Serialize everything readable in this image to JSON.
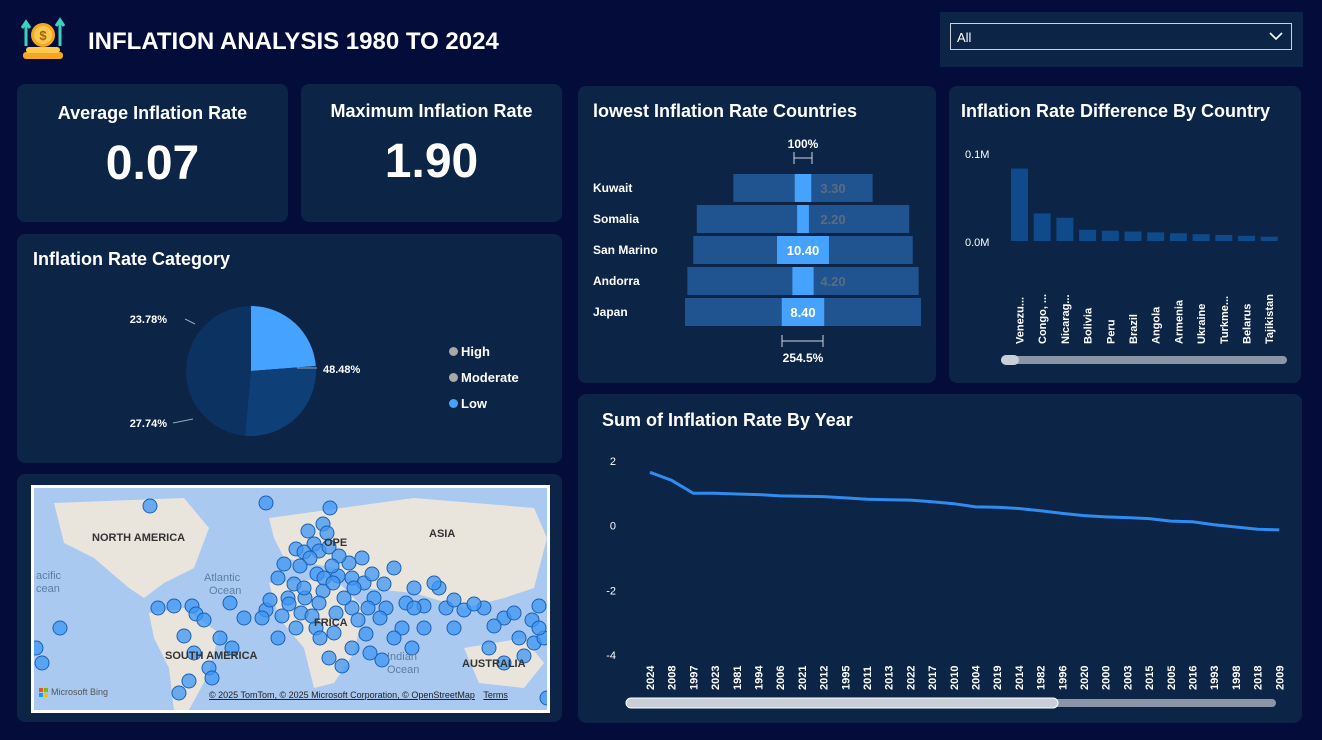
{
  "header": {
    "title": "INFLATION ANALYSIS 1980 TO 2024",
    "logo_icon": "money-growth-icon",
    "filter_value": "All"
  },
  "kpis": {
    "average": {
      "label": "Average Inflation Rate",
      "value": "0.07"
    },
    "maximum": {
      "label": "Maximum Inflation Rate",
      "value": "1.90"
    }
  },
  "category": {
    "title": "Inflation Rate Category",
    "legend": [
      {
        "label": "High",
        "color": "#a8a8a8"
      },
      {
        "label": "Moderate",
        "color": "#a8a8a8"
      },
      {
        "label": "Low",
        "color": "#45a3ff"
      }
    ]
  },
  "lowest": {
    "title": "lowest Inflation Rate Countries",
    "top_pct": "100%",
    "bottom_pct": "254.5%"
  },
  "difference": {
    "title": "Inflation Rate Difference By Country",
    "y_top": "0.1M",
    "y_zero": "0.0M"
  },
  "yearly": {
    "title": "Sum of Inflation Rate By Year"
  },
  "map": {
    "labels": {
      "north_america": "NORTH AMERICA",
      "asia": "ASIA",
      "europe": "OPE",
      "africa": "FRICA",
      "south_america": "SOUTH AMERICA",
      "australia": "AUSTRALIA",
      "pacific": "acific",
      "pacific2": "cean",
      "atlantic": "Atlantic",
      "atlantic2": "Ocean",
      "indian": "Indian",
      "indian2": "Ocean"
    },
    "attribution": "© 2025 TomTom, © 2025 Microsoft Corporation, © OpenStreetMap",
    "terms": "Terms",
    "bing": "Microsoft Bing"
  },
  "chart_data": [
    {
      "type": "pie",
      "title": "Inflation Rate Category",
      "categories": [
        "Low",
        "Moderate",
        "High"
      ],
      "values": [
        23.78,
        27.74,
        48.48
      ],
      "labels": [
        "23.78%",
        "27.74%",
        "48.48%"
      ],
      "colors": [
        "#45a3ff",
        "#0f3f77",
        "#0b3261"
      ]
    },
    {
      "type": "bar",
      "title": "lowest Inflation Rate Countries",
      "categories": [
        "Kuwait",
        "Somalia",
        "San Marino",
        "Andorra",
        "Japan"
      ],
      "values": [
        3.3,
        2.2,
        10.4,
        4.2,
        8.4
      ],
      "labels": [
        "3.30",
        "2.20",
        "10.40",
        "4.20",
        "8.40"
      ],
      "background_widths": [
        0.59,
        0.9,
        0.93,
        0.98,
        1.0
      ],
      "highlight_widths": [
        0.07,
        0.05,
        0.22,
        0.09,
        0.18
      ]
    },
    {
      "type": "bar",
      "title": "Inflation Rate Difference By Country",
      "categories": [
        "Venezu...",
        "Congo, ...",
        "Nicarag...",
        "Bolivia",
        "Peru",
        "Brazil",
        "Angola",
        "Armenia",
        "Ukraine",
        "Turkme...",
        "Belarus",
        "Tajikistan"
      ],
      "values": [
        0.084,
        0.032,
        0.027,
        0.013,
        0.012,
        0.011,
        0.01,
        0.009,
        0.008,
        0.007,
        0.006,
        0.005
      ],
      "ylabel_ticks": [
        "0.0M",
        "0.1M"
      ],
      "ylim": [
        0,
        0.1
      ]
    },
    {
      "type": "line",
      "title": "Sum of Inflation Rate By Year",
      "x": [
        "2024",
        "2008",
        "1997",
        "2023",
        "1981",
        "1994",
        "2006",
        "2021",
        "2012",
        "1995",
        "2011",
        "2013",
        "2022",
        "2017",
        "2010",
        "2004",
        "2019",
        "2014",
        "1982",
        "1996",
        "2020",
        "2000",
        "2003",
        "2015",
        "2005",
        "2016",
        "1993",
        "1998",
        "2018",
        "2009"
      ],
      "values": [
        1.65,
        1.4,
        1.0,
        1.0,
        0.98,
        0.96,
        0.92,
        0.91,
        0.9,
        0.86,
        0.82,
        0.8,
        0.79,
        0.74,
        0.68,
        0.58,
        0.57,
        0.53,
        0.46,
        0.38,
        0.31,
        0.27,
        0.25,
        0.22,
        0.14,
        0.12,
        0.03,
        -0.04,
        -0.11,
        -0.13
      ],
      "y_ticks": [
        2,
        0,
        -2,
        -4
      ],
      "ylim": [
        -4,
        2
      ]
    }
  ]
}
